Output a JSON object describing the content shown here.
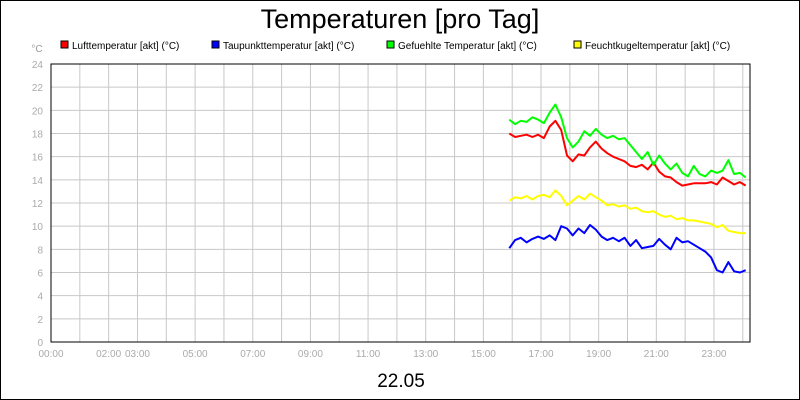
{
  "chart_data": {
    "type": "line",
    "title": "Temperaturen [pro Tag]",
    "date_label": "22.05",
    "ylabel": "°C",
    "ylim": [
      0,
      24
    ],
    "ytick_step": 2,
    "xlim_hours": [
      0,
      24.25
    ],
    "grid": true,
    "legend_position": "top",
    "x_ticks": [
      {
        "label": "00:00",
        "hour": 0
      },
      {
        "label": "02:00",
        "hour": 2
      },
      {
        "label": "03:00",
        "hour": 3
      },
      {
        "label": "05:00",
        "hour": 5
      },
      {
        "label": "07:00",
        "hour": 7
      },
      {
        "label": "09:00",
        "hour": 9
      },
      {
        "label": "11:00",
        "hour": 11
      },
      {
        "label": "13:00",
        "hour": 13
      },
      {
        "label": "15:00",
        "hour": 15
      },
      {
        "label": "17:00",
        "hour": 17
      },
      {
        "label": "19:00",
        "hour": 19
      },
      {
        "label": "21:00",
        "hour": 21
      },
      {
        "label": "23:00",
        "hour": 23
      }
    ],
    "series": [
      {
        "name": "Lufttemperatur [akt] (°C)",
        "color": "#ff0000",
        "x": [
          15.9,
          16.1,
          16.3,
          16.5,
          16.7,
          16.9,
          17.1,
          17.3,
          17.5,
          17.7,
          17.9,
          18.1,
          18.3,
          18.5,
          18.7,
          18.9,
          19.1,
          19.3,
          19.5,
          19.7,
          19.9,
          20.1,
          20.3,
          20.5,
          20.7,
          20.9,
          21.1,
          21.3,
          21.5,
          21.7,
          21.9,
          22.1,
          22.3,
          22.5,
          22.7,
          22.9,
          23.1,
          23.3,
          23.5,
          23.7,
          23.9,
          24.1
        ],
        "y": [
          18.0,
          17.7,
          17.8,
          17.9,
          17.7,
          17.9,
          17.6,
          18.6,
          19.1,
          18.3,
          16.1,
          15.6,
          16.2,
          16.1,
          16.8,
          17.3,
          16.7,
          16.3,
          16.0,
          15.8,
          15.6,
          15.2,
          15.1,
          15.3,
          14.9,
          15.5,
          14.7,
          14.3,
          14.2,
          13.8,
          13.5,
          13.6,
          13.7,
          13.7,
          13.7,
          13.8,
          13.6,
          14.2,
          13.9,
          13.6,
          13.8,
          13.5
        ]
      },
      {
        "name": "Taupunkttemperatur [akt] (°C)",
        "color": "#0000ff",
        "x": [
          15.9,
          16.1,
          16.3,
          16.5,
          16.7,
          16.9,
          17.1,
          17.3,
          17.5,
          17.7,
          17.9,
          18.1,
          18.3,
          18.5,
          18.7,
          18.9,
          19.1,
          19.3,
          19.5,
          19.7,
          19.9,
          20.1,
          20.3,
          20.5,
          20.7,
          20.9,
          21.1,
          21.3,
          21.5,
          21.7,
          21.9,
          22.1,
          22.3,
          22.5,
          22.7,
          22.9,
          23.1,
          23.3,
          23.5,
          23.7,
          23.9,
          24.1
        ],
        "y": [
          8.1,
          8.8,
          9.0,
          8.6,
          8.9,
          9.1,
          8.9,
          9.2,
          8.8,
          10.0,
          9.8,
          9.2,
          9.8,
          9.4,
          10.1,
          9.7,
          9.1,
          8.8,
          9.0,
          8.7,
          9.0,
          8.3,
          8.8,
          8.1,
          8.2,
          8.3,
          8.9,
          8.4,
          8.0,
          9.0,
          8.6,
          8.7,
          8.4,
          8.1,
          7.8,
          7.3,
          6.2,
          6.0,
          6.9,
          6.1,
          6.0,
          6.2
        ]
      },
      {
        "name": "Gefuehlte Temperatur [akt] (°C)",
        "color": "#00ff00",
        "x": [
          15.9,
          16.1,
          16.3,
          16.5,
          16.7,
          16.9,
          17.1,
          17.3,
          17.5,
          17.7,
          17.9,
          18.1,
          18.3,
          18.5,
          18.7,
          18.9,
          19.1,
          19.3,
          19.5,
          19.7,
          19.9,
          20.1,
          20.3,
          20.5,
          20.7,
          20.9,
          21.1,
          21.3,
          21.5,
          21.7,
          21.9,
          22.1,
          22.3,
          22.5,
          22.7,
          22.9,
          23.1,
          23.3,
          23.5,
          23.7,
          23.9,
          24.1
        ],
        "y": [
          19.2,
          18.8,
          19.1,
          19.0,
          19.4,
          19.2,
          18.9,
          19.8,
          20.5,
          19.4,
          17.6,
          16.8,
          17.3,
          18.2,
          17.8,
          18.4,
          17.9,
          17.6,
          17.8,
          17.5,
          17.6,
          17.0,
          16.4,
          15.8,
          16.4,
          15.3,
          16.1,
          15.4,
          14.9,
          15.4,
          14.6,
          14.3,
          15.2,
          14.5,
          14.3,
          14.8,
          14.6,
          14.8,
          15.7,
          14.5,
          14.6,
          14.2
        ]
      },
      {
        "name": "Feuchtkugeltemperatur [akt] (°C)",
        "color": "#ffff00",
        "x": [
          15.9,
          16.1,
          16.3,
          16.5,
          16.7,
          16.9,
          17.1,
          17.3,
          17.5,
          17.7,
          17.9,
          18.1,
          18.3,
          18.5,
          18.7,
          18.9,
          19.1,
          19.3,
          19.5,
          19.7,
          19.9,
          20.1,
          20.3,
          20.5,
          20.7,
          20.9,
          21.1,
          21.3,
          21.5,
          21.7,
          21.9,
          22.1,
          22.3,
          22.5,
          22.7,
          22.9,
          23.1,
          23.3,
          23.5,
          23.7,
          23.9,
          24.1
        ],
        "y": [
          12.2,
          12.5,
          12.4,
          12.6,
          12.3,
          12.6,
          12.7,
          12.5,
          13.1,
          12.6,
          11.8,
          12.2,
          12.6,
          12.3,
          12.8,
          12.5,
          12.2,
          11.8,
          11.9,
          11.7,
          11.8,
          11.5,
          11.6,
          11.3,
          11.2,
          11.3,
          11.0,
          10.8,
          10.9,
          10.6,
          10.7,
          10.5,
          10.5,
          10.4,
          10.3,
          10.2,
          9.9,
          10.1,
          9.6,
          9.5,
          9.4,
          9.4
        ]
      }
    ]
  }
}
